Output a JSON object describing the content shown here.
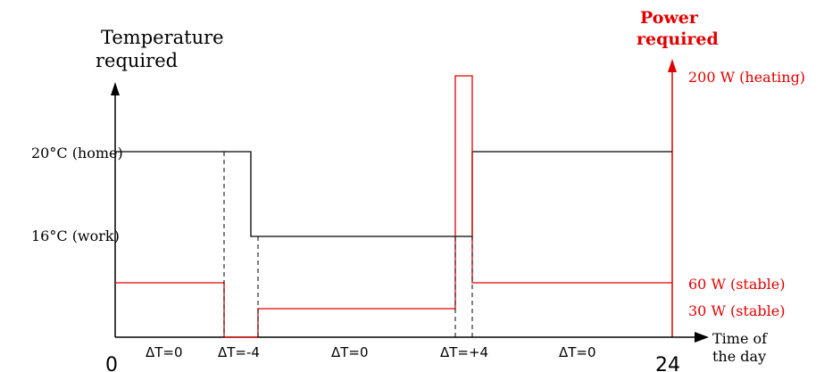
{
  "diagram": {
    "left_axis_label_line1": "Temperature",
    "left_axis_label_line2": "required",
    "right_axis_label_line1": "Power",
    "right_axis_label_line2": "required",
    "x_axis_label_line1": "Time of",
    "x_axis_label_line2": "the day",
    "temp_home_label": "20°C (home)",
    "temp_work_label": "16°C (work)",
    "power_heating_label": "200 W (heating)",
    "power_stable60_label": "60 W (stable)",
    "power_stable30_label": "30 W (stable)",
    "x_start_label": "0",
    "x_end_label": "24",
    "delta_labels": [
      "ΔT=0",
      "ΔT=-4",
      "ΔT=0",
      "ΔT=+4",
      "ΔT=0"
    ],
    "colors": {
      "temperature": "#000000",
      "power": "#e00000",
      "dashed": "#000000"
    }
  }
}
